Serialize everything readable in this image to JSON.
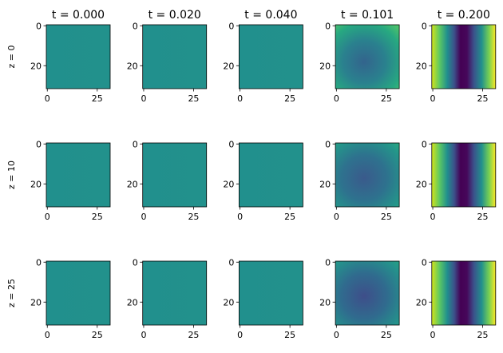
{
  "chart_data": {
    "type": "heatmap",
    "column_titles": [
      "t = 0.000",
      "t = 0.020",
      "t = 0.040",
      "t = 0.101",
      "t = 0.200"
    ],
    "row_labels": [
      "z = 0",
      "z = 10",
      "z = 25"
    ],
    "xlim": [
      -0.5,
      31.5
    ],
    "ylim": [
      31.5,
      -0.5
    ],
    "xticks": [
      0,
      25
    ],
    "yticks": [
      0,
      20
    ]
  }
}
